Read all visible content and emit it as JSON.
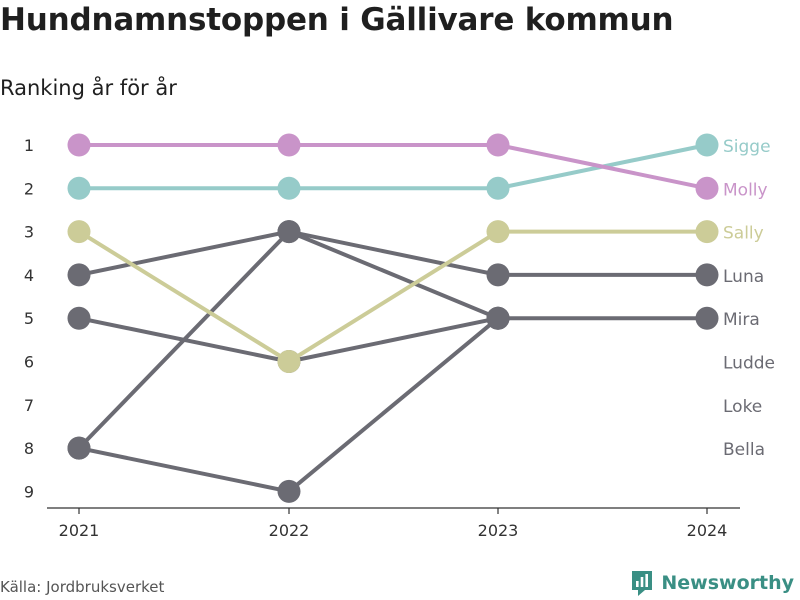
{
  "header": {
    "title": "Hundnamnstoppen i Gällivare kommun",
    "subtitle": "Ranking år för år"
  },
  "footer": {
    "source": "Källa: Jordbruksverket",
    "brand": "Newsworthy",
    "brand_icon": "newsworthy-logo-icon",
    "brand_color": "#3a8f84"
  },
  "chart_data": {
    "type": "line",
    "subtype": "bump",
    "x": [
      "2021",
      "2022",
      "2023",
      "2024"
    ],
    "y_ticks": [
      1,
      2,
      3,
      4,
      5,
      6,
      7,
      8,
      9
    ],
    "y_reversed": true,
    "ylim": [
      1,
      9
    ],
    "grid": false,
    "legend": "end-labels-right",
    "series": [
      {
        "name": "Sigge",
        "values": [
          2,
          2,
          2,
          1
        ],
        "color": "#96cbc9"
      },
      {
        "name": "Molly",
        "values": [
          1,
          1,
          1,
          2
        ],
        "color": "#c994c9"
      },
      {
        "name": "Sally",
        "values": [
          3,
          6,
          3,
          3
        ],
        "color": "#cccc98"
      },
      {
        "name": "Luna",
        "values": [
          4,
          3,
          4,
          4
        ],
        "color": "#6b6b73"
      },
      {
        "name": "Mira",
        "values": [
          5,
          6,
          5,
          5
        ],
        "color": "#6b6b73"
      },
      {
        "name": "Ludde",
        "values": [
          8,
          3,
          5,
          null
        ],
        "color": "#6b6b73"
      },
      {
        "name": "Loke",
        "values": [
          8,
          9,
          5,
          null
        ],
        "color": "#6b6b73"
      },
      {
        "name": "Bella",
        "values": [
          null,
          null,
          null,
          null
        ],
        "color": "#6b6b73"
      }
    ]
  }
}
